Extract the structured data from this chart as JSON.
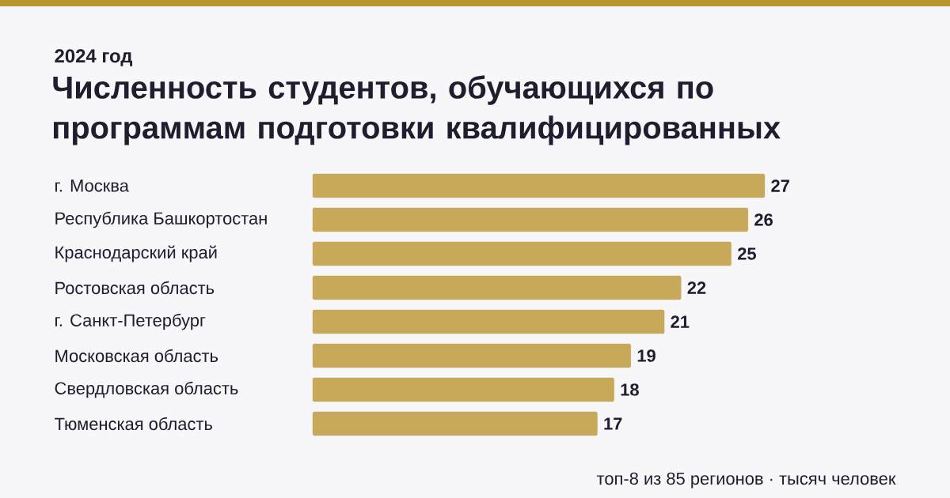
{
  "chart_data": {
    "type": "bar",
    "orientation": "horizontal",
    "title": "Численность студентов, обучающихся по программам подготовки квалифицированных",
    "subtitle": "2024 год",
    "categories": [
      "г. Москва",
      "Республика Башкортостан",
      "Краснодарский край",
      "Ростовская область",
      "г. Санкт-Петербург",
      "Московская область",
      "Свердловская область",
      "Тюменская область"
    ],
    "values": [
      27,
      26,
      25,
      22,
      21,
      19,
      18,
      17
    ],
    "color": "#c8a95a",
    "data_labels": true,
    "tick_labels": "y",
    "grid": false,
    "annotations": [
      "топ-8 из 85 регионов · тысяч человек"
    ]
  }
}
